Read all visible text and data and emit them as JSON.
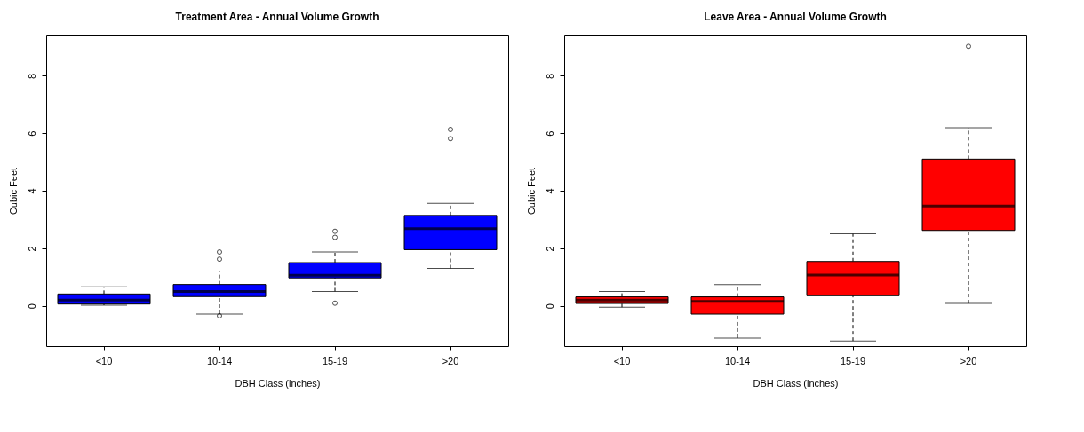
{
  "chart_data": [
    {
      "type": "box",
      "title": "Treatment Area - Annual Volume Growth",
      "xlabel": "DBH Class (inches)",
      "ylabel": "Cubic Feet",
      "categories": [
        "<10",
        "10-14",
        "15-19",
        ">20"
      ],
      "ylim": [
        -1.4,
        9.4
      ],
      "yticks": [
        0,
        2,
        4,
        6,
        8
      ],
      "grid": false,
      "series": [
        {
          "color": "#0000ff",
          "boxes": [
            {
              "low": 0.02,
              "q1": 0.06,
              "median": 0.2,
              "q3": 0.41,
              "high": 0.66
            },
            {
              "low": -0.29,
              "q1": 0.32,
              "median": 0.5,
              "q3": 0.74,
              "high": 1.21,
              "outliers": [
                1.62,
                1.87,
                -0.35
              ]
            },
            {
              "low": 0.5,
              "q1": 0.97,
              "median": 1.06,
              "q3": 1.5,
              "high": 1.87,
              "outliers": [
                0.09,
                2.38,
                2.59
              ]
            },
            {
              "low": 1.3,
              "q1": 1.95,
              "median": 2.68,
              "q3": 3.14,
              "high": 3.56,
              "outliers": [
                5.81,
                6.13
              ]
            }
          ]
        }
      ]
    },
    {
      "type": "box",
      "title": "Leave Area - Annual Volume Growth",
      "xlabel": "DBH Class (inches)",
      "ylabel": "Cubic Feet",
      "categories": [
        "<10",
        "10-14",
        "15-19",
        ">20"
      ],
      "ylim": [
        -1.4,
        9.4
      ],
      "yticks": [
        0,
        2,
        4,
        6,
        8
      ],
      "grid": false,
      "series": [
        {
          "color": "#ff0000",
          "boxes": [
            {
              "low": -0.05,
              "q1": 0.08,
              "median": 0.2,
              "q3": 0.31,
              "high": 0.5
            },
            {
              "low": -1.12,
              "q1": -0.29,
              "median": 0.15,
              "q3": 0.31,
              "high": 0.74
            },
            {
              "low": -1.22,
              "q1": 0.35,
              "median": 1.07,
              "q3": 1.54,
              "high": 2.5
            },
            {
              "low": 0.08,
              "q1": 2.62,
              "median": 3.47,
              "q3": 5.1,
              "high": 6.19,
              "outliers": [
                9.02
              ]
            }
          ]
        }
      ]
    }
  ]
}
